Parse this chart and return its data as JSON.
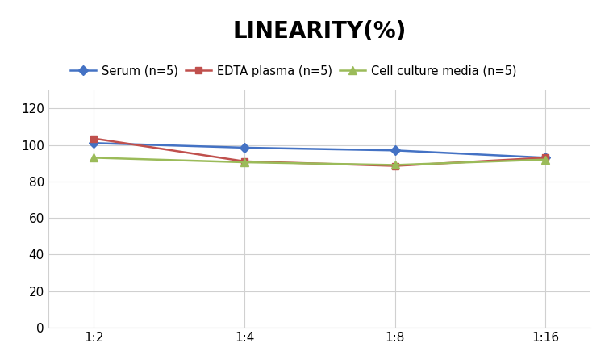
{
  "title": "LINEARITY(%)",
  "title_fontsize": 20,
  "title_fontweight": "bold",
  "x_labels": [
    "1:2",
    "1:4",
    "1:8",
    "1:16"
  ],
  "x_positions": [
    0,
    1,
    2,
    3
  ],
  "series": [
    {
      "label": "Serum (n=5)",
      "values": [
        101,
        98.5,
        97,
        93
      ],
      "color": "#4472C4",
      "marker": "D",
      "markersize": 6,
      "linewidth": 1.8
    },
    {
      "label": "EDTA plasma (n=5)",
      "values": [
        103.5,
        91,
        88.5,
        93
      ],
      "color": "#C0504D",
      "marker": "s",
      "markersize": 6,
      "linewidth": 1.8
    },
    {
      "label": "Cell culture media (n=5)",
      "values": [
        93,
        90.5,
        89,
        92
      ],
      "color": "#9BBB59",
      "marker": "^",
      "markersize": 7,
      "linewidth": 1.8
    }
  ],
  "ylim": [
    0,
    130
  ],
  "yticks": [
    0,
    20,
    40,
    60,
    80,
    100,
    120
  ],
  "background_color": "#ffffff",
  "grid_color": "#d0d0d0",
  "legend_fontsize": 10.5,
  "axis_fontsize": 11
}
